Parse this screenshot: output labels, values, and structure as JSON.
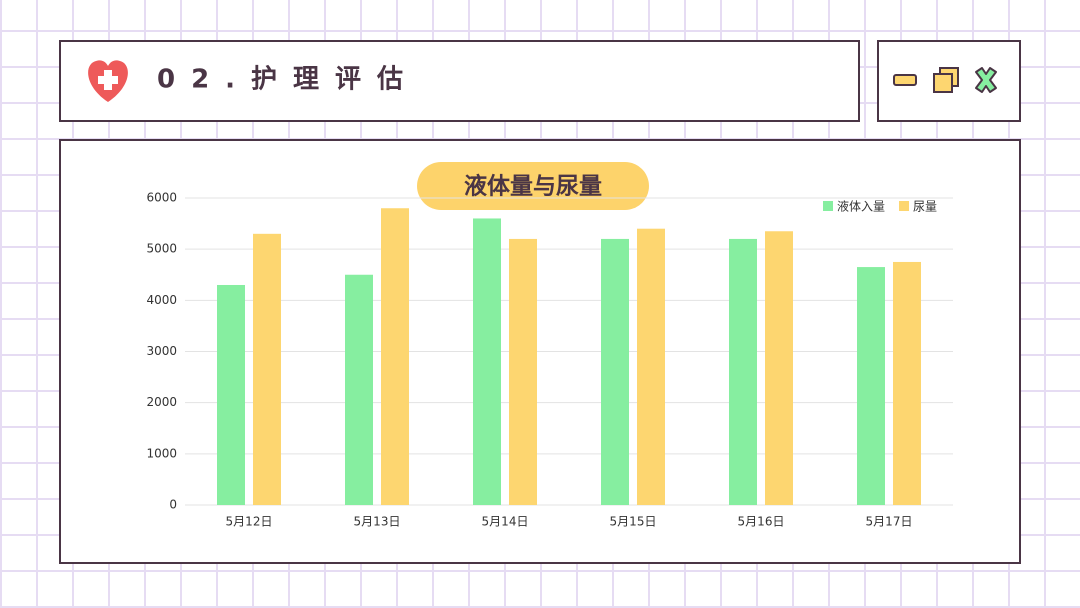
{
  "header": {
    "title": "02.护理评估"
  },
  "chart_data": {
    "type": "bar",
    "title": "液体量与尿量",
    "categories": [
      "5月12日",
      "5月13日",
      "5月14日",
      "5月15日",
      "5月16日",
      "5月17日"
    ],
    "series": [
      {
        "name": "液体入量",
        "color": "#86eea0",
        "values": [
          4300,
          4500,
          5600,
          5200,
          5200,
          4650
        ]
      },
      {
        "name": "尿量",
        "color": "#fdd670",
        "values": [
          5300,
          5800,
          5200,
          5400,
          5350,
          4750
        ]
      }
    ],
    "ylim": [
      0,
      6000
    ],
    "yticks": [
      0,
      1000,
      2000,
      3000,
      4000,
      5000,
      6000
    ],
    "grid": true,
    "legend": "top-right"
  }
}
